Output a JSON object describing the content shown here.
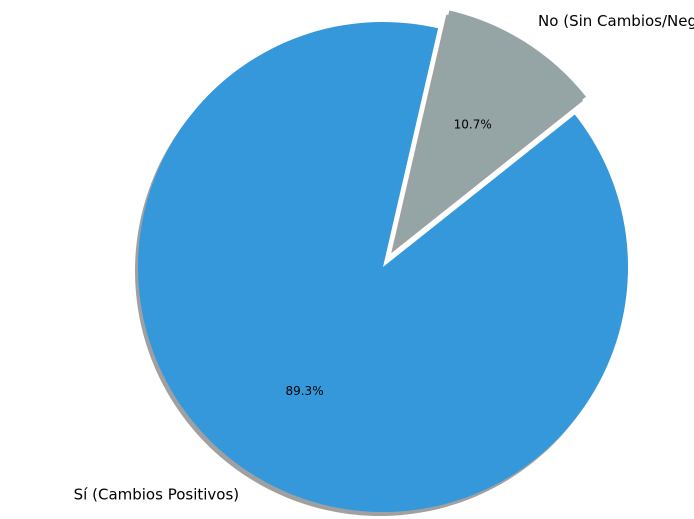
{
  "chart_data": {
    "type": "pie",
    "title": "",
    "slices": [
      {
        "label": "Sí (Cambios Positivos)",
        "value": 89.3,
        "pct_label": "89.3%",
        "color": "#3498db",
        "exploded": false
      },
      {
        "label": "No (Sin Cambios/Negativos)",
        "value": 10.7,
        "pct_label": "10.7%",
        "color": "#95a5a6",
        "exploded": true
      }
    ],
    "shadow": true,
    "legend": "none"
  }
}
